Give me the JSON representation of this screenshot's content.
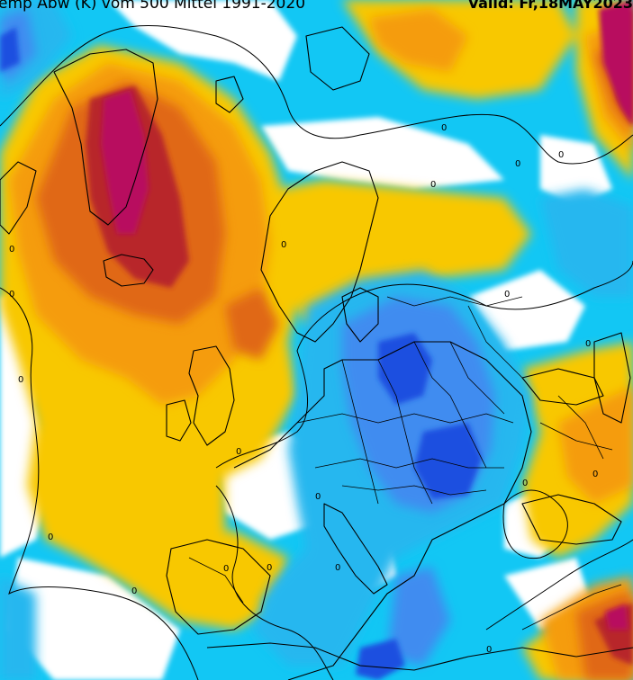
{
  "header": {
    "left_text": "emp Abw (K) vom 500 Mittel 1991-2020",
    "right_text": "Valid: Fr,18MAY2023"
  },
  "contour_label": "0",
  "palette": {
    "deep_blue": "#1e4fe0",
    "mid_blue": "#3f8cf0",
    "light_blue": "#27b7ef",
    "cyan": "#12c7f4",
    "white": "#ffffff",
    "yellow": "#f8c806",
    "light_orange": "#f59c0c",
    "orange": "#e06815",
    "red": "#b8262b",
    "magenta": "#b8105f",
    "line": "#000000"
  }
}
